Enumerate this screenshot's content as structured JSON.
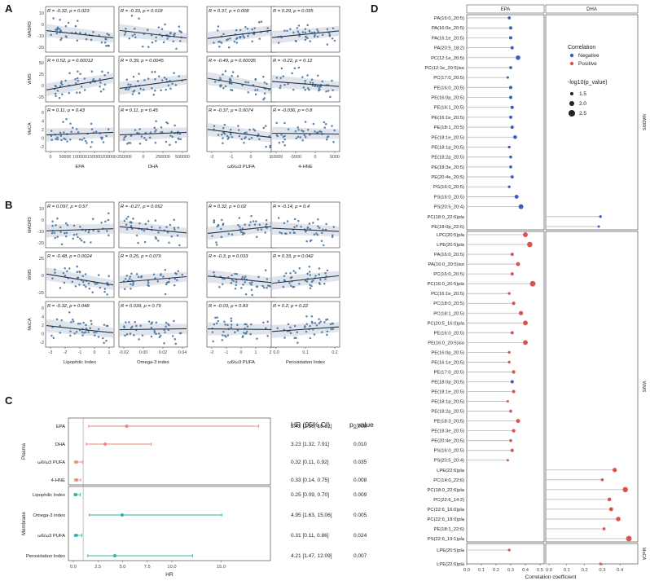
{
  "figure": {
    "panel_labels": [
      "A",
      "B",
      "C",
      "D"
    ],
    "colors": {
      "point": "#4a75a0",
      "line": "#1f3550",
      "band": "#d9dee6",
      "negative": "#3b5bc4",
      "positive": "#d9534f",
      "plasma_hr": "#e88a7e",
      "membrane_hr": "#2cb5a9",
      "frame": "#333333",
      "strip": "#f0f0f0"
    }
  },
  "chart_data": [
    {
      "type": "scatter",
      "panel": "A",
      "rows": [
        "MADRS",
        "WMS",
        "MoCA"
      ],
      "columns": [
        "EPA",
        "DHA",
        "ω6/ω3 PUFA",
        "4-HNE"
      ],
      "x_ticks": [
        [
          "0",
          "50000",
          "100000",
          "150000",
          "200000"
        ],
        [
          "-250000",
          "0",
          "250000",
          "500000"
        ],
        [
          "-2",
          "-1",
          "0",
          "1"
        ],
        [
          "-10000",
          "-5000",
          "0",
          "5000"
        ]
      ],
      "y_ticks": [
        [
          "10",
          "0",
          "-10",
          "-20"
        ],
        [
          "50",
          "25",
          "0",
          "-25"
        ],
        [
          "6",
          "4",
          "2",
          "0",
          "-2"
        ]
      ],
      "annotations": [
        [
          "R = -0.32, p = 0.023",
          "R = -0.33, p = 0.018",
          "R = 0.37, p = 0.008",
          "R = 0.29, p = 0.035"
        ],
        [
          "R = 0.52, p = 0.00012",
          "R = 0.39, p = 0.0045",
          "R = -0.49, p = 0.00035",
          "R = -0.22, p = 0.12"
        ],
        [
          "R = 0.11, p = 0.43",
          "R = 0.11, p = 0.45",
          "R = -0.37, p = 0.0074",
          "R = -0.036, p = 0.8"
        ]
      ],
      "r_values": [
        [
          -0.32,
          -0.33,
          0.37,
          0.29
        ],
        [
          0.52,
          0.39,
          -0.49,
          -0.22
        ],
        [
          0.11,
          0.11,
          -0.37,
          -0.036
        ]
      ]
    },
    {
      "type": "scatter",
      "panel": "B",
      "rows": [
        "MADRS",
        "WMS",
        "MoCA"
      ],
      "columns": [
        "Lipophilic Index",
        "Omega-3 index",
        "ω6/ω3 PUFA",
        "Peroxidation Index"
      ],
      "x_ticks": [
        [
          "-3",
          "-2",
          "-1",
          "0",
          "1"
        ],
        [
          "-0.02",
          "0.00",
          "0.02",
          "0.04"
        ],
        [
          "-2",
          "-1",
          "0",
          "1",
          "2"
        ],
        [
          "0.0",
          "0.1",
          "0.2"
        ]
      ],
      "y_ticks": [
        [
          "10",
          "0",
          "-10",
          "-20"
        ],
        [
          "25",
          "0",
          "-25"
        ],
        [
          "6",
          "4",
          "2",
          "0",
          "-2"
        ]
      ],
      "annotations": [
        [
          "R = 0.097, p = 0.57",
          "R = -0.27, p = 0.052",
          "R = 0.32, p = 0.02",
          "R = -0.14, p = 0.4"
        ],
        [
          "R = -0.48, p = 0.0024",
          "R = 0.25, p = 0.079",
          "R = -0.3, p = 0.033",
          "R = 0.33, p = 0.042"
        ],
        [
          "R = -0.32, p = 0.048",
          "R = 0.039, p = 0.79",
          "R = -0.03, p = 0.83",
          "R = 0.2, p = 0.22"
        ]
      ],
      "r_values": [
        [
          0.097,
          -0.27,
          0.32,
          -0.14
        ],
        [
          -0.48,
          0.25,
          -0.3,
          0.33
        ],
        [
          -0.32,
          0.039,
          -0.03,
          0.2
        ]
      ]
    },
    {
      "type": "forest",
      "panel": "C",
      "xlabel": "HR",
      "x_ticks": [
        "0.0",
        "2.5",
        "5.0",
        "7.5",
        "10.0",
        "15.0"
      ],
      "xlim": [
        0,
        20
      ],
      "reference_line": 1,
      "col_headers": [
        "HR (95% CI)",
        "p_value"
      ],
      "groups": [
        {
          "name": "Plasma",
          "items": [
            {
              "label": "EPA",
              "hr": 5.42,
              "lo": 1.56,
              "hi": 18.81,
              "text": "5.42 [1.56, 18.81]",
              "p": "0.008"
            },
            {
              "label": "DHA",
              "hr": 3.23,
              "lo": 1.32,
              "hi": 7.91,
              "text": "3.23 [1.32, 7.91]",
              "p": "0.010"
            },
            {
              "label": "ω6/ω3 PUFA",
              "hr": 0.32,
              "lo": 0.11,
              "hi": 0.92,
              "text": "0.32 [0.11, 0.92]",
              "p": "0.035"
            },
            {
              "label": "4-HNE",
              "hr": 0.33,
              "lo": 0.14,
              "hi": 0.75,
              "text": "0.33 [0.14, 0.75]",
              "p": "0.008"
            }
          ]
        },
        {
          "name": "Membrane",
          "items": [
            {
              "label": "Lipophilic Index",
              "hr": 0.25,
              "lo": 0.09,
              "hi": 0.7,
              "text": "0.25 [0.09, 0.70]",
              "p": "0.009"
            },
            {
              "label": "Omega-3 index",
              "hr": 4.95,
              "lo": 1.63,
              "hi": 15.06,
              "text": "4.95 [1.63, 15.06]",
              "p": "0.005"
            },
            {
              "label": "ω6/ω3 PUFA",
              "hr": 0.31,
              "lo": 0.11,
              "hi": 0.86,
              "text": "0.31 [0.11, 0.86]",
              "p": "0.024"
            },
            {
              "label": "Peroxidation Index",
              "hr": 4.21,
              "lo": 1.47,
              "hi": 12.09,
              "text": "4.21 [1.47, 12.09]",
              "p": "0.007"
            }
          ]
        }
      ]
    },
    {
      "type": "lollipop",
      "panel": "D",
      "columns": [
        "EPA",
        "DHA"
      ],
      "xlabel": "Correlation coefficient",
      "x_ticks": [
        "0.0",
        "0.1",
        "0.2",
        "0.3",
        "0.4",
        "0.5",
        "0.0",
        "0.1",
        "0.2",
        "0.3",
        "0.4"
      ],
      "xlim": [
        0,
        0.5
      ],
      "legend": {
        "title": "Correlation",
        "labels": [
          "Negative",
          "Positive"
        ],
        "size_title": "-log10(p_value)",
        "size_labels": [
          "1.5",
          "2.0",
          "2.5"
        ]
      },
      "groups": [
        {
          "name": "MADRS",
          "items": [
            {
              "label": "PA(16:0_20:5)",
              "epa": 0.29,
              "dha": null,
              "sign": "neg",
              "logp": 1.7
            },
            {
              "label": "PA(16:0e_20:5)",
              "epa": 0.3,
              "dha": null,
              "sign": "neg",
              "logp": 1.8
            },
            {
              "label": "PA(16:1e_20:5)",
              "epa": 0.3,
              "dha": null,
              "sign": "neg",
              "logp": 1.8
            },
            {
              "label": "PA(20:5_18:2)",
              "epa": 0.31,
              "dha": null,
              "sign": "neg",
              "logp": 1.8
            },
            {
              "label": "PC(12:1e_20:5)",
              "epa": 0.35,
              "dha": null,
              "sign": "neg",
              "logp": 2.3
            },
            {
              "label": "PC(12:1e_20:5)iso",
              "epa": 0.3,
              "dha": null,
              "sign": "neg",
              "logp": 1.7
            },
            {
              "label": "PC(17:0_20:5)",
              "epa": 0.28,
              "dha": null,
              "sign": "neg",
              "logp": 1.5
            },
            {
              "label": "PE(16:0_20:5)",
              "epa": 0.3,
              "dha": null,
              "sign": "neg",
              "logp": 1.8
            },
            {
              "label": "PE(16:0p_20:5)",
              "epa": 0.3,
              "dha": null,
              "sign": "neg",
              "logp": 1.8
            },
            {
              "label": "PE(16:1_20:5)",
              "epa": 0.31,
              "dha": null,
              "sign": "neg",
              "logp": 1.8
            },
            {
              "label": "PE(16:1e_20:5)",
              "epa": 0.3,
              "dha": null,
              "sign": "neg",
              "logp": 1.8
            },
            {
              "label": "PE(18:1_20:5)",
              "epa": 0.31,
              "dha": null,
              "sign": "neg",
              "logp": 1.8
            },
            {
              "label": "PE(18:1e_20:5)",
              "epa": 0.33,
              "dha": null,
              "sign": "neg",
              "logp": 2.0
            },
            {
              "label": "PE(18:1p_20:5)",
              "epa": 0.29,
              "dha": null,
              "sign": "neg",
              "logp": 1.6
            },
            {
              "label": "PE(18:2p_20:5)",
              "epa": 0.3,
              "dha": null,
              "sign": "neg",
              "logp": 1.7
            },
            {
              "label": "PE(18:3e_20:5)",
              "epa": 0.3,
              "dha": null,
              "sign": "neg",
              "logp": 1.7
            },
            {
              "label": "PE(20:4e_20:5)",
              "epa": 0.31,
              "dha": null,
              "sign": "neg",
              "logp": 1.8
            },
            {
              "label": "PG(16:0_20:5)",
              "epa": 0.29,
              "dha": null,
              "sign": "neg",
              "logp": 1.6
            },
            {
              "label": "PS(16:0_20:5)",
              "epa": 0.34,
              "dha": null,
              "sign": "neg",
              "logp": 2.1
            },
            {
              "label": "PS(20:5_20:4)",
              "epa": 0.37,
              "dha": null,
              "sign": "neg",
              "logp": 2.4
            },
            {
              "label": "PC(18:0_22:6)pla",
              "epa": null,
              "dha": 0.29,
              "sign": "neg",
              "logp": 1.6
            },
            {
              "label": "PE(18:0p_22:6)",
              "epa": null,
              "dha": 0.28,
              "sign": "neg",
              "logp": 1.5
            }
          ]
        },
        {
          "name": "WMS",
          "items": [
            {
              "label": "LPC(20:5)pla",
              "epa": 0.4,
              "dha": null,
              "sign": "pos",
              "logp": 2.4
            },
            {
              "label": "LPE(20:5)pla",
              "epa": 0.43,
              "dha": null,
              "sign": "pos",
              "logp": 2.6
            },
            {
              "label": "PA(16:0_20:5)",
              "epa": 0.31,
              "dha": null,
              "sign": "pos",
              "logp": 1.8
            },
            {
              "label": "PA(16:0_20:5)iso",
              "epa": 0.35,
              "dha": null,
              "sign": "pos",
              "logp": 2.1
            },
            {
              "label": "PC(16:0_20:5)",
              "epa": 0.31,
              "dha": null,
              "sign": "pos",
              "logp": 1.8
            },
            {
              "label": "PC(16:0_20:5)pla",
              "epa": 0.45,
              "dha": null,
              "sign": "pos",
              "logp": 2.7
            },
            {
              "label": "PC(16:1e_20:5)",
              "epa": 0.29,
              "dha": null,
              "sign": "pos",
              "logp": 1.6
            },
            {
              "label": "PC(18:0_20:5)",
              "epa": 0.32,
              "dha": null,
              "sign": "pos",
              "logp": 1.9
            },
            {
              "label": "PC(18:1_20:5)",
              "epa": 0.37,
              "dha": null,
              "sign": "pos",
              "logp": 2.2
            },
            {
              "label": "PC(20:5_16:0)pla",
              "epa": 0.4,
              "dha": null,
              "sign": "pos",
              "logp": 2.4
            },
            {
              "label": "PE(16:0_20:5)",
              "epa": 0.31,
              "dha": null,
              "sign": "pos",
              "logp": 1.8
            },
            {
              "label": "PE(16:0_20:5)iso",
              "epa": 0.4,
              "dha": null,
              "sign": "pos",
              "logp": 2.4
            },
            {
              "label": "PE(16:0p_20:5)",
              "epa": 0.29,
              "dha": null,
              "sign": "pos",
              "logp": 1.6
            },
            {
              "label": "PE(16:1e_20:5)",
              "epa": 0.29,
              "dha": null,
              "sign": "pos",
              "logp": 1.6
            },
            {
              "label": "PE(17:0_20:5)",
              "epa": 0.32,
              "dha": null,
              "sign": "pos",
              "logp": 1.9
            },
            {
              "label": "PE(18:0p_20:5)",
              "epa": 0.31,
              "dha": null,
              "sign": "neg",
              "logp": 1.8
            },
            {
              "label": "PE(18:1e_20:5)",
              "epa": 0.32,
              "dha": null,
              "sign": "pos",
              "logp": 1.8
            },
            {
              "label": "PE(18:1p_20:5)",
              "epa": 0.28,
              "dha": null,
              "sign": "pos",
              "logp": 1.5
            },
            {
              "label": "PE(18:2p_20:5)",
              "epa": 0.3,
              "dha": null,
              "sign": "pos",
              "logp": 1.7
            },
            {
              "label": "PE(18:3_20:5)",
              "epa": 0.35,
              "dha": null,
              "sign": "pos",
              "logp": 2.1
            },
            {
              "label": "PE(18:3e_20:5)",
              "epa": 0.32,
              "dha": null,
              "sign": "pos",
              "logp": 1.9
            },
            {
              "label": "PE(20:4e_20:5)",
              "epa": 0.3,
              "dha": null,
              "sign": "pos",
              "logp": 1.7
            },
            {
              "label": "PS(16:0_20:5)",
              "epa": 0.31,
              "dha": null,
              "sign": "pos",
              "logp": 1.8
            },
            {
              "label": "PS(20:5_20:4)",
              "epa": 0.28,
              "dha": null,
              "sign": "pos",
              "logp": 1.5
            },
            {
              "label": "LPE(22:6)pla",
              "epa": null,
              "dha": 0.37,
              "sign": "pos",
              "logp": 2.2
            },
            {
              "label": "PC(14:0_22:6)",
              "epa": null,
              "dha": 0.3,
              "sign": "pos",
              "logp": 1.7
            },
            {
              "label": "PC(18:0_22:6)pla",
              "epa": null,
              "dha": 0.43,
              "sign": "pos",
              "logp": 2.6
            },
            {
              "label": "PC(22:6_14:2)",
              "epa": null,
              "dha": 0.34,
              "sign": "pos",
              "logp": 2.0
            },
            {
              "label": "PC(22:6_16:0)pla",
              "epa": null,
              "dha": 0.35,
              "sign": "pos",
              "logp": 2.1
            },
            {
              "label": "PC(22:6_18:0)pla",
              "epa": null,
              "dha": 0.39,
              "sign": "pos",
              "logp": 2.3
            },
            {
              "label": "PE(18:1_22:6)",
              "epa": null,
              "dha": 0.31,
              "sign": "pos",
              "logp": 1.7
            },
            {
              "label": "PS(22:6_19:1)pla",
              "epa": null,
              "dha": 0.45,
              "sign": "pos",
              "logp": 2.7
            }
          ]
        },
        {
          "name": "MoCA",
          "items": [
            {
              "label": "LPE(20:5)pla",
              "epa": 0.29,
              "dha": null,
              "sign": "pos",
              "logp": 1.6
            },
            {
              "label": "LPE(22:6)pla",
              "epa": null,
              "dha": 0.29,
              "sign": "pos",
              "logp": 1.6
            }
          ]
        }
      ]
    }
  ]
}
